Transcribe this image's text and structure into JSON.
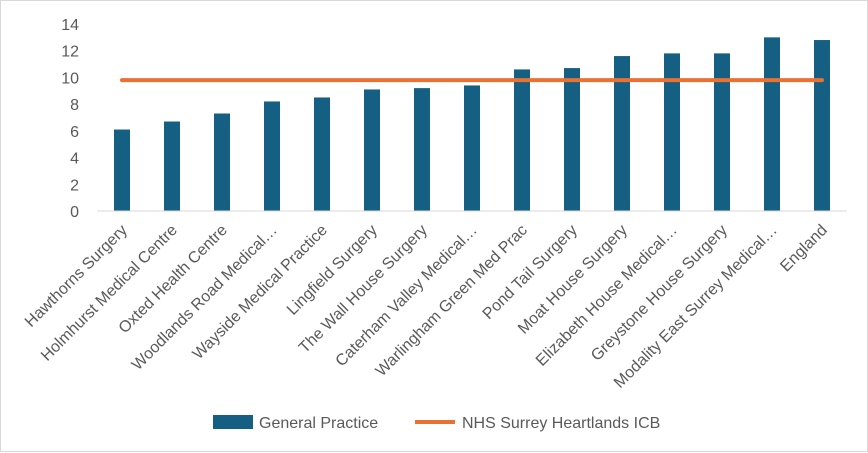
{
  "chart_data": {
    "type": "bar",
    "categories": [
      "Hawthorns Surgery",
      "Holmhurst Medical Centre",
      "Oxted Health Centre",
      "Woodlands Road Medical…",
      "Wayside Medical Practice",
      "Lingfield Surgery",
      "The Wall House Surgery",
      "Caterham Valley Medical…",
      "Warlingham Green Med Prac",
      "Pond Tail Surgery",
      "Moat House Surgery",
      "Elizabeth House Medical…",
      "Greystone House Surgery",
      "Modality East Surrey Medical…",
      "England"
    ],
    "series": [
      {
        "name": "General Practice",
        "type": "bar",
        "color": "#156082",
        "values": [
          6.1,
          6.7,
          7.3,
          8.2,
          8.5,
          9.1,
          9.2,
          9.4,
          10.6,
          10.7,
          11.6,
          11.8,
          11.8,
          13.0,
          12.8
        ]
      },
      {
        "name": "NHS Surrey Heartlands ICB",
        "type": "line",
        "color": "#E97132",
        "values": [
          9.8,
          9.8,
          9.8,
          9.8,
          9.8,
          9.8,
          9.8,
          9.8,
          9.8,
          9.8,
          9.8,
          9.8,
          9.8,
          9.8,
          9.8
        ]
      }
    ],
    "y_ticks": [
      "0",
      "2",
      "4",
      "6",
      "8",
      "10",
      "12",
      "14"
    ],
    "ylim": [
      0,
      14
    ],
    "grid": false,
    "legend_position": "bottom"
  }
}
